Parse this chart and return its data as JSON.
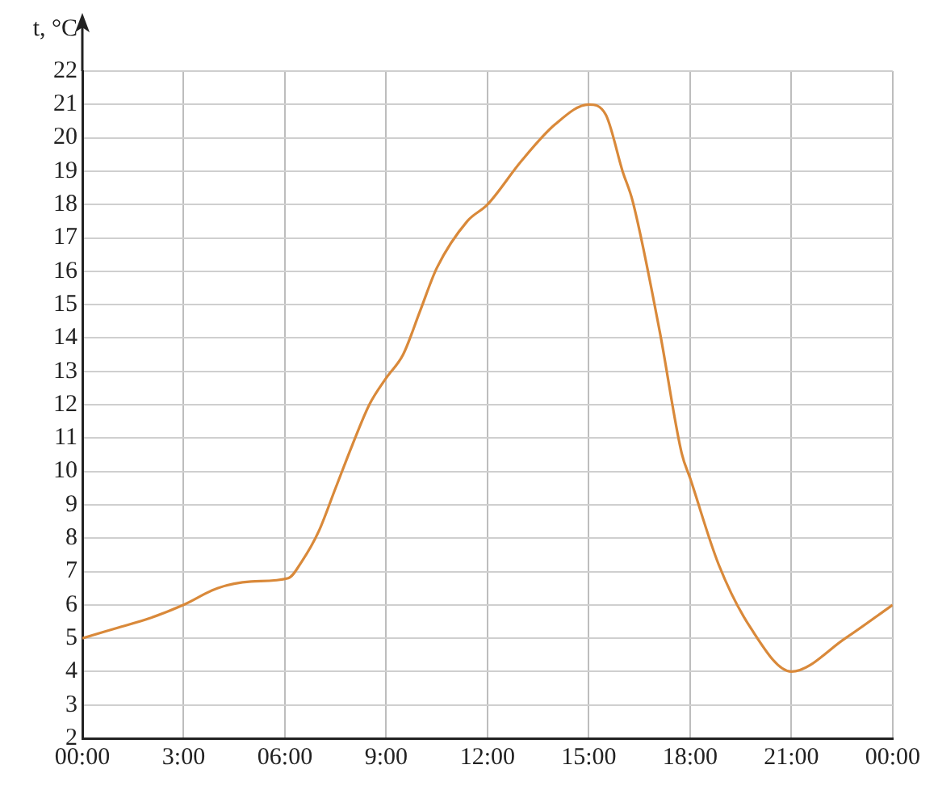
{
  "chart_data": {
    "type": "line",
    "ylabel": "t, °C",
    "x": [
      0,
      1,
      2,
      3,
      4,
      5,
      6.1,
      6.5,
      7,
      7.5,
      8,
      8.5,
      9,
      9.5,
      10,
      10.5,
      11.4,
      12,
      13,
      14,
      15,
      15.5,
      16,
      16.3,
      17.1,
      17.75,
      18,
      18.85,
      19.8,
      21,
      22.6,
      24
    ],
    "series": [
      {
        "color": "#d9893a",
        "values": [
          5,
          5.3,
          5.6,
          6,
          6.5,
          6.7,
          6.8,
          7.3,
          8.2,
          9.5,
          10.8,
          12,
          12.8,
          13.5,
          14.8,
          16.1,
          17.5,
          18,
          19.3,
          20.4,
          21,
          20.7,
          19,
          18.1,
          14.2,
          10.55,
          9.8,
          7.2,
          5.3,
          4,
          5,
          6
        ]
      }
    ],
    "xlim": [
      0,
      24
    ],
    "xticks": [
      {
        "value": 0,
        "label": "00:00"
      },
      {
        "value": 3,
        "label": "3:00"
      },
      {
        "value": 6,
        "label": "06:00"
      },
      {
        "value": 9,
        "label": "9:00"
      },
      {
        "value": 12,
        "label": "12:00"
      },
      {
        "value": 15,
        "label": "15:00"
      },
      {
        "value": 18,
        "label": "18:00"
      },
      {
        "value": 21,
        "label": "21:00"
      },
      {
        "value": 24,
        "label": "00:00"
      }
    ],
    "ylim": [
      2,
      22
    ],
    "yticks": [
      2,
      3,
      4,
      5,
      6,
      7,
      8,
      9,
      10,
      11,
      12,
      13,
      14,
      15,
      16,
      17,
      18,
      19,
      20,
      21,
      22
    ],
    "grid": true,
    "marker": "none",
    "line_style": "solid",
    "legend": false
  }
}
